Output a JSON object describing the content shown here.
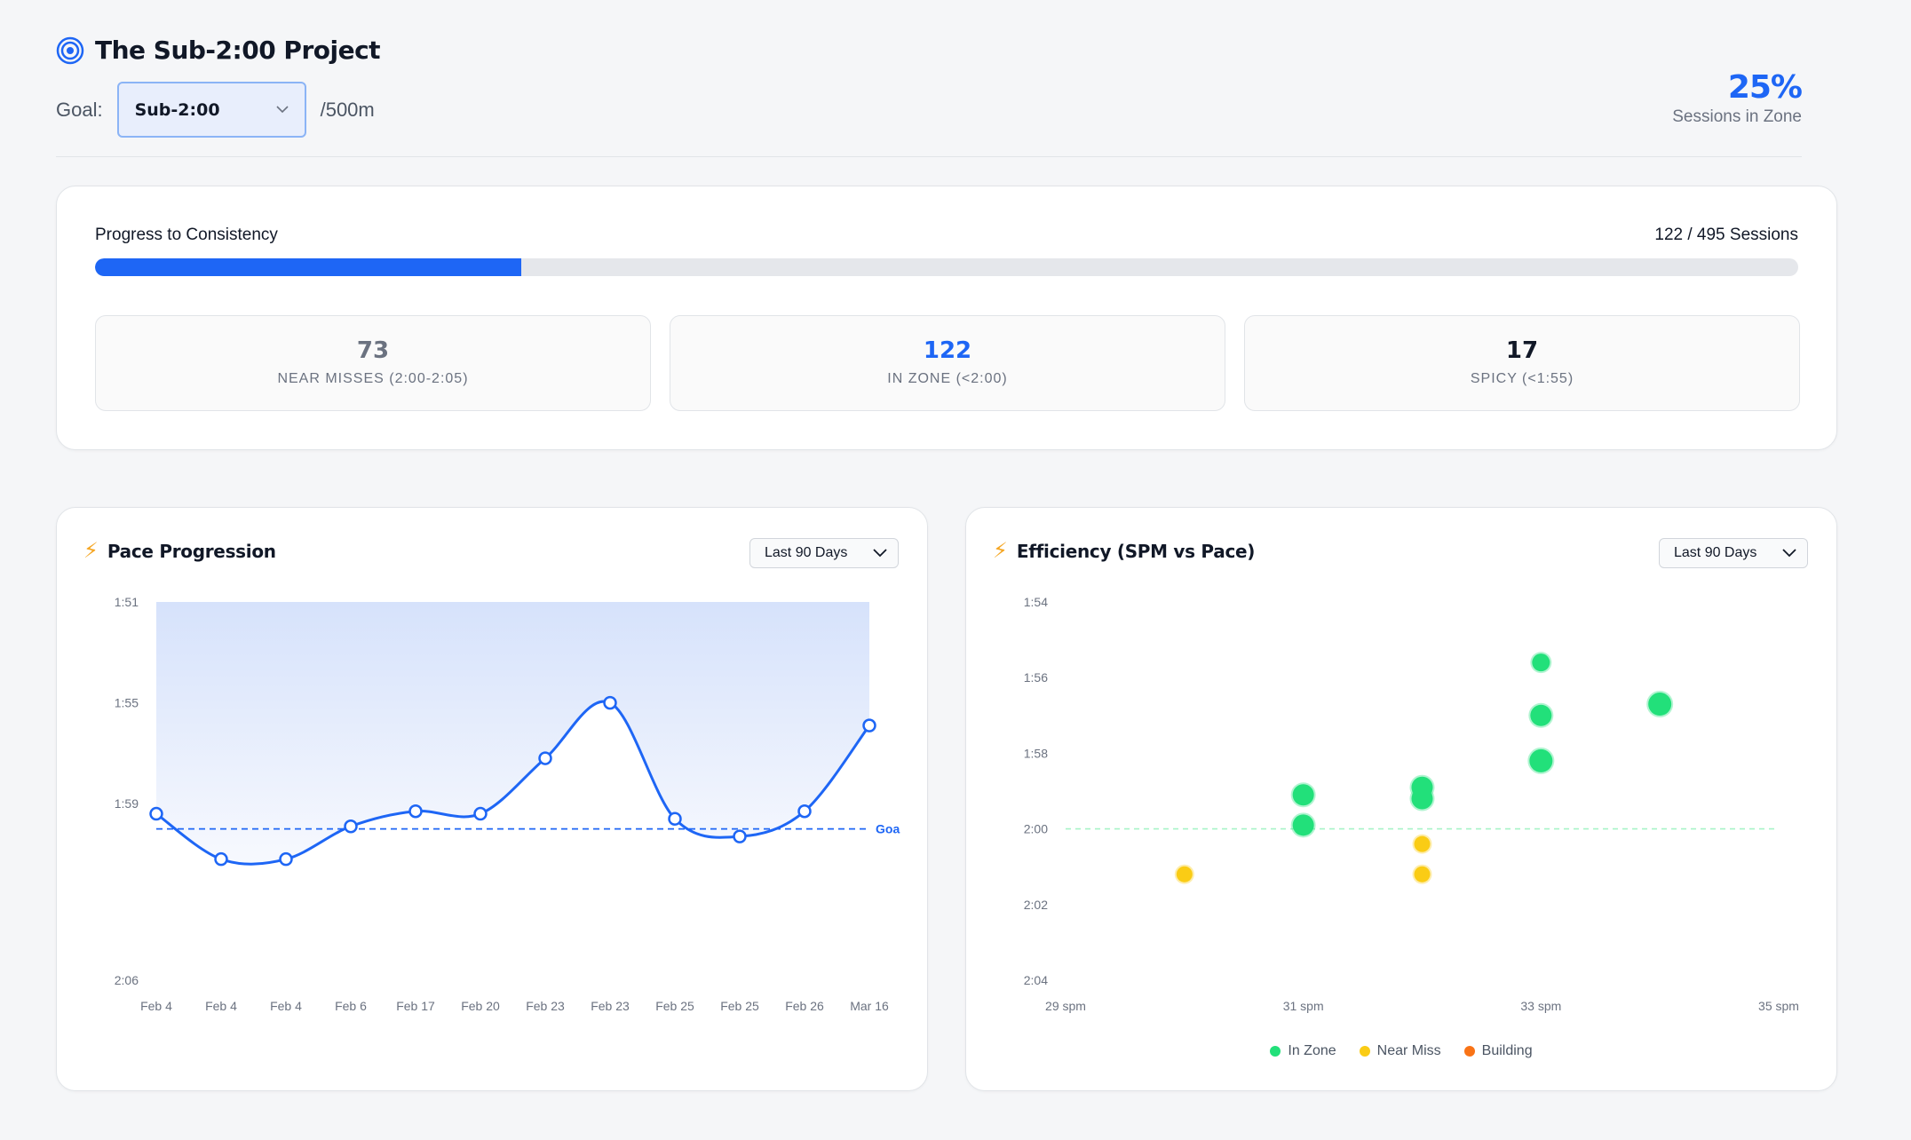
{
  "header": {
    "title": "The Sub-2:00 Project",
    "goal_label": "Goal:",
    "goal_value": "Sub-2:00",
    "goal_unit": "/500m",
    "zone_pct": "25%",
    "zone_label": "Sessions in Zone"
  },
  "progress": {
    "label": "Progress to Consistency",
    "count_text": "122 / 495 Sessions",
    "fraction": 0.25,
    "stats": [
      {
        "value": "73",
        "label": "NEAR MISSES (2:00-2:05)",
        "color": "#6b7280"
      },
      {
        "value": "122",
        "label": "IN ZONE (<2:00)",
        "color": "#1e66f5"
      },
      {
        "value": "17",
        "label": "SPICY (<1:55)",
        "color": "#111827"
      }
    ]
  },
  "pace_card": {
    "title": "Pace Progression",
    "range": "Last 90 Days",
    "goal_label": "Goa"
  },
  "eff_card": {
    "title": "Efficiency (SPM vs Pace)",
    "range": "Last 90 Days",
    "legend": [
      {
        "label": "In Zone",
        "color": "#22e07a"
      },
      {
        "label": "Near Miss",
        "color": "#facc15"
      },
      {
        "label": "Building",
        "color": "#f97316"
      }
    ]
  },
  "colors": {
    "accent": "#1e66f5",
    "in_zone": "#22e07a",
    "near_miss": "#facc15",
    "building": "#f97316"
  },
  "chart_data": [
    {
      "type": "line",
      "title": "Pace Progression",
      "xlabel": "",
      "ylabel": "",
      "categories": [
        "Feb 4",
        "Feb 4",
        "Feb 4",
        "Feb 6",
        "Feb 17",
        "Feb 20",
        "Feb 23",
        "Feb 23",
        "Feb 25",
        "Feb 25",
        "Feb 26",
        "Mar 16"
      ],
      "y_ticks": [
        "1:51",
        "1:55",
        "1:59",
        "2:06"
      ],
      "ylim": [
        111,
        126
      ],
      "goal": 120,
      "series": [
        {
          "values": [
            119.4,
            121.2,
            121.2,
            119.9,
            119.3,
            119.4,
            117.2,
            115.0,
            119.6,
            120.3,
            119.3,
            115.9
          ]
        }
      ]
    },
    {
      "type": "scatter",
      "title": "Efficiency (SPM vs Pace)",
      "xlabel": "",
      "ylabel": "",
      "x_ticks": [
        "29 spm",
        "31 spm",
        "33 spm",
        "35 spm"
      ],
      "y_ticks": [
        "1:54",
        "1:56",
        "1:58",
        "2:00",
        "2:02",
        "2:04"
      ],
      "xlim": [
        29,
        35
      ],
      "ylim": [
        114,
        124
      ],
      "goal": 120,
      "points": [
        {
          "x": 30.0,
          "y": 121.2,
          "cat": "Near Miss",
          "r": 9
        },
        {
          "x": 31.0,
          "y": 119.1,
          "cat": "In Zone",
          "r": 12
        },
        {
          "x": 31.0,
          "y": 119.9,
          "cat": "In Zone",
          "r": 12
        },
        {
          "x": 32.0,
          "y": 118.9,
          "cat": "In Zone",
          "r": 12
        },
        {
          "x": 32.0,
          "y": 119.2,
          "cat": "In Zone",
          "r": 12
        },
        {
          "x": 32.0,
          "y": 120.4,
          "cat": "Near Miss",
          "r": 9
        },
        {
          "x": 32.0,
          "y": 121.2,
          "cat": "Near Miss",
          "r": 9
        },
        {
          "x": 33.0,
          "y": 115.6,
          "cat": "In Zone",
          "r": 10
        },
        {
          "x": 33.0,
          "y": 117.0,
          "cat": "In Zone",
          "r": 12
        },
        {
          "x": 33.0,
          "y": 118.2,
          "cat": "In Zone",
          "r": 13
        },
        {
          "x": 34.0,
          "y": 116.7,
          "cat": "In Zone",
          "r": 13
        }
      ]
    }
  ]
}
